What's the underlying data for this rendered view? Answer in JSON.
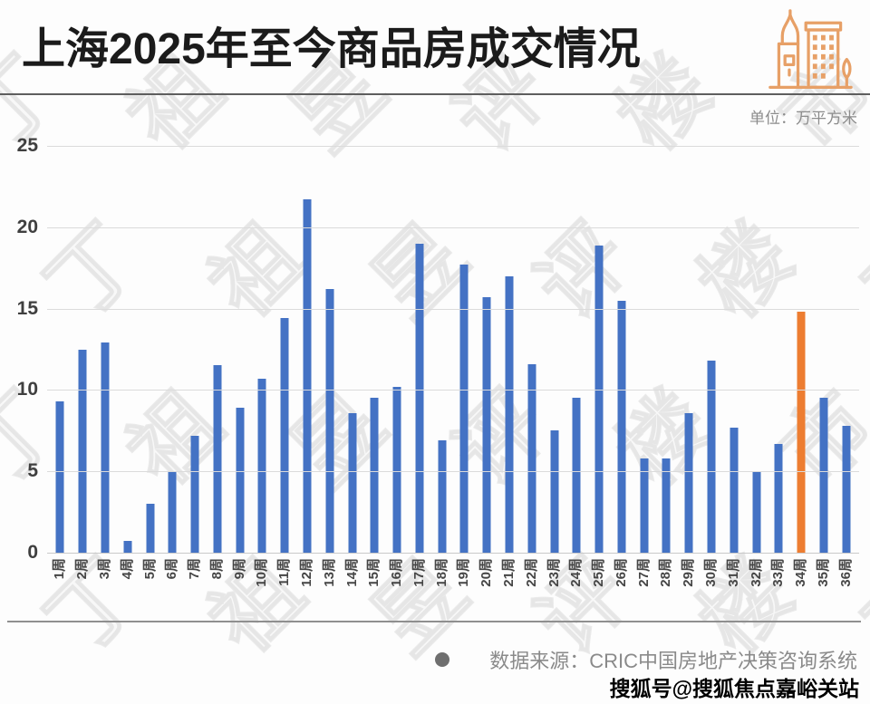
{
  "page": {
    "title": "上海2025年至今商品房成交情况",
    "unit_label": "单位：万平方米"
  },
  "watermark": {
    "text": "丁祖昱评楼市"
  },
  "footer": {
    "source_label": "数据来源：CRIC中国房地产决策咨询系统",
    "publisher_label": "搜狐号@搜狐焦点嘉峪关站"
  },
  "colors": {
    "bar_blue": "#4472C4",
    "bar_highlight_orange": "#ED7D31",
    "icon_orange": "#E7A067",
    "gridline": "#DBDBDB",
    "axis_line": "#C9C9C9",
    "axis_text": "#3F3F3F",
    "muted_text": "#8C8C8C",
    "title_text": "#1B1B1B"
  },
  "chart_data": {
    "type": "bar",
    "title": "上海2025年至今商品房成交情况",
    "unit": "万平方米",
    "xlabel": "",
    "ylabel": "",
    "ylim": [
      0,
      25
    ],
    "yticks": [
      0,
      5,
      10,
      15,
      20,
      25
    ],
    "grid": true,
    "legend_position": "none",
    "categories": [
      "1周",
      "2周",
      "3周",
      "4周",
      "5周",
      "6周",
      "7周",
      "8周",
      "9周",
      "10周",
      "11周",
      "12周",
      "13周",
      "14周",
      "15周",
      "16周",
      "17周",
      "18周",
      "19周",
      "20周",
      "21周",
      "22周",
      "23周",
      "24周",
      "25周",
      "26周",
      "27周",
      "28周",
      "29周",
      "30周",
      "31周",
      "32周",
      "33周",
      "34周",
      "35周",
      "36周"
    ],
    "values": [
      9.3,
      12.5,
      12.9,
      0.7,
      3.0,
      5.0,
      7.2,
      11.5,
      8.9,
      10.7,
      14.4,
      21.7,
      16.2,
      8.6,
      9.5,
      10.2,
      19.0,
      6.9,
      17.7,
      15.7,
      17.0,
      11.6,
      7.5,
      9.5,
      18.9,
      15.5,
      5.8,
      5.8,
      8.6,
      11.8,
      7.7,
      5.0,
      6.7,
      14.8,
      9.5,
      7.8
    ],
    "highlight_index": 33,
    "highlight_category": "34周"
  }
}
